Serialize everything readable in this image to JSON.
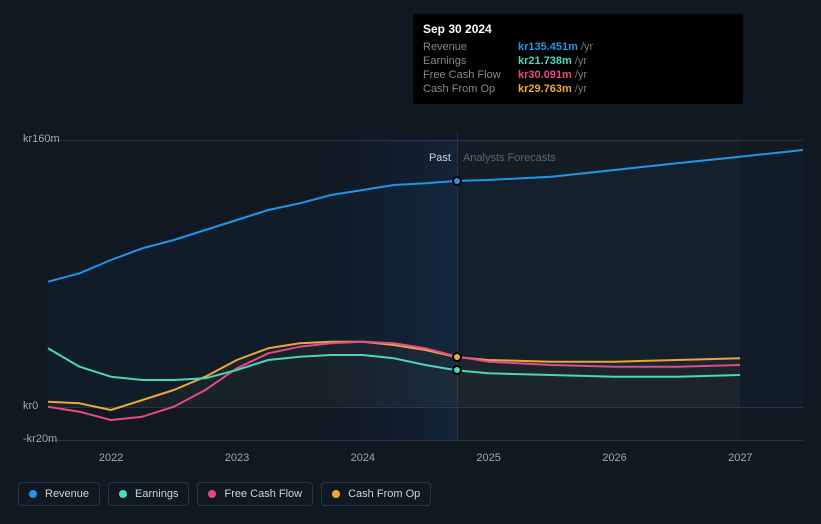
{
  "chart": {
    "type": "line",
    "background_color": "#101822",
    "grid_color": "#2a3440",
    "text_color": "#a0a8b0",
    "y_axis": {
      "min": -20,
      "max": 160,
      "labels": [
        {
          "text": "kr160m",
          "value": 160
        },
        {
          "text": "kr0",
          "value": 0
        },
        {
          "text": "-kr20m",
          "value": -20
        }
      ]
    },
    "x_axis": {
      "min": 2021.5,
      "max": 2027.5,
      "current": 2024.75,
      "forecast_end": 2027.0,
      "labels": [
        "2022",
        "2023",
        "2024",
        "2025",
        "2026",
        "2027"
      ]
    },
    "sections": {
      "past_label": "Past",
      "forecast_label": "Analysts Forecasts",
      "past_label_color": "#d0d4d8",
      "forecast_label_color": "#5a6470"
    },
    "series": [
      {
        "id": "revenue",
        "name": "Revenue",
        "color": "#2196e8",
        "show_marker": true,
        "fill_opacity": 0.04,
        "data": [
          [
            2021.5,
            75
          ],
          [
            2021.75,
            80
          ],
          [
            2022.0,
            88
          ],
          [
            2022.25,
            95
          ],
          [
            2022.5,
            100
          ],
          [
            2022.75,
            106
          ],
          [
            2023.0,
            112
          ],
          [
            2023.25,
            118
          ],
          [
            2023.5,
            122
          ],
          [
            2023.75,
            127
          ],
          [
            2024.0,
            130
          ],
          [
            2024.25,
            133
          ],
          [
            2024.5,
            134
          ],
          [
            2024.75,
            135.451
          ],
          [
            2025.0,
            136
          ],
          [
            2025.5,
            138
          ],
          [
            2026.0,
            142
          ],
          [
            2026.5,
            146
          ],
          [
            2027.0,
            150
          ],
          [
            2027.5,
            154
          ]
        ]
      },
      {
        "id": "earnings",
        "name": "Earnings",
        "color": "#4ed8b8",
        "show_marker": true,
        "fill_opacity": 0,
        "data": [
          [
            2021.5,
            35
          ],
          [
            2021.75,
            24
          ],
          [
            2022.0,
            18
          ],
          [
            2022.25,
            16
          ],
          [
            2022.5,
            16
          ],
          [
            2022.75,
            17
          ],
          [
            2023.0,
            22
          ],
          [
            2023.25,
            28
          ],
          [
            2023.5,
            30
          ],
          [
            2023.75,
            31
          ],
          [
            2024.0,
            31
          ],
          [
            2024.25,
            29
          ],
          [
            2024.5,
            25
          ],
          [
            2024.75,
            21.738
          ],
          [
            2025.0,
            20
          ],
          [
            2025.5,
            19
          ],
          [
            2026.0,
            18
          ],
          [
            2026.5,
            18
          ],
          [
            2027.0,
            19
          ]
        ]
      },
      {
        "id": "fcf",
        "name": "Free Cash Flow",
        "color": "#e84888",
        "show_marker": false,
        "fill_opacity": 0,
        "data": [
          [
            2021.5,
            0
          ],
          [
            2021.75,
            -3
          ],
          [
            2022.0,
            -8
          ],
          [
            2022.25,
            -6
          ],
          [
            2022.5,
            0
          ],
          [
            2022.75,
            10
          ],
          [
            2023.0,
            23
          ],
          [
            2023.25,
            32
          ],
          [
            2023.5,
            36
          ],
          [
            2023.75,
            38
          ],
          [
            2024.0,
            39
          ],
          [
            2024.25,
            38
          ],
          [
            2024.5,
            35
          ],
          [
            2024.75,
            30.091
          ],
          [
            2025.0,
            27
          ],
          [
            2025.5,
            25
          ],
          [
            2026.0,
            24
          ],
          [
            2026.5,
            24
          ],
          [
            2027.0,
            25
          ]
        ]
      },
      {
        "id": "cfo",
        "name": "Cash From Op",
        "color": "#f0a838",
        "show_marker": true,
        "fill_opacity": 0.04,
        "data": [
          [
            2021.5,
            3
          ],
          [
            2021.75,
            2
          ],
          [
            2022.0,
            -2
          ],
          [
            2022.25,
            4
          ],
          [
            2022.5,
            10
          ],
          [
            2022.75,
            18
          ],
          [
            2023.0,
            28
          ],
          [
            2023.25,
            35
          ],
          [
            2023.5,
            38
          ],
          [
            2023.75,
            39
          ],
          [
            2024.0,
            39
          ],
          [
            2024.25,
            37
          ],
          [
            2024.5,
            34
          ],
          [
            2024.75,
            29.763
          ],
          [
            2025.0,
            28
          ],
          [
            2025.5,
            27
          ],
          [
            2026.0,
            27
          ],
          [
            2026.5,
            28
          ],
          [
            2027.0,
            29
          ]
        ]
      }
    ]
  },
  "tooltip": {
    "date": "Sep 30 2024",
    "unit": "/yr",
    "rows": [
      {
        "label": "Revenue",
        "value": "kr135.451m",
        "color": "#2196e8"
      },
      {
        "label": "Earnings",
        "value": "kr21.738m",
        "color": "#4ed8b8"
      },
      {
        "label": "Free Cash Flow",
        "value": "kr30.091m",
        "color": "#e84888"
      },
      {
        "label": "Cash From Op",
        "value": "kr29.763m",
        "color": "#f0a838"
      }
    ]
  },
  "legend": [
    {
      "label": "Revenue",
      "color": "#2196e8"
    },
    {
      "label": "Earnings",
      "color": "#4ed8b8"
    },
    {
      "label": "Free Cash Flow",
      "color": "#e84888"
    },
    {
      "label": "Cash From Op",
      "color": "#f0a838"
    }
  ]
}
